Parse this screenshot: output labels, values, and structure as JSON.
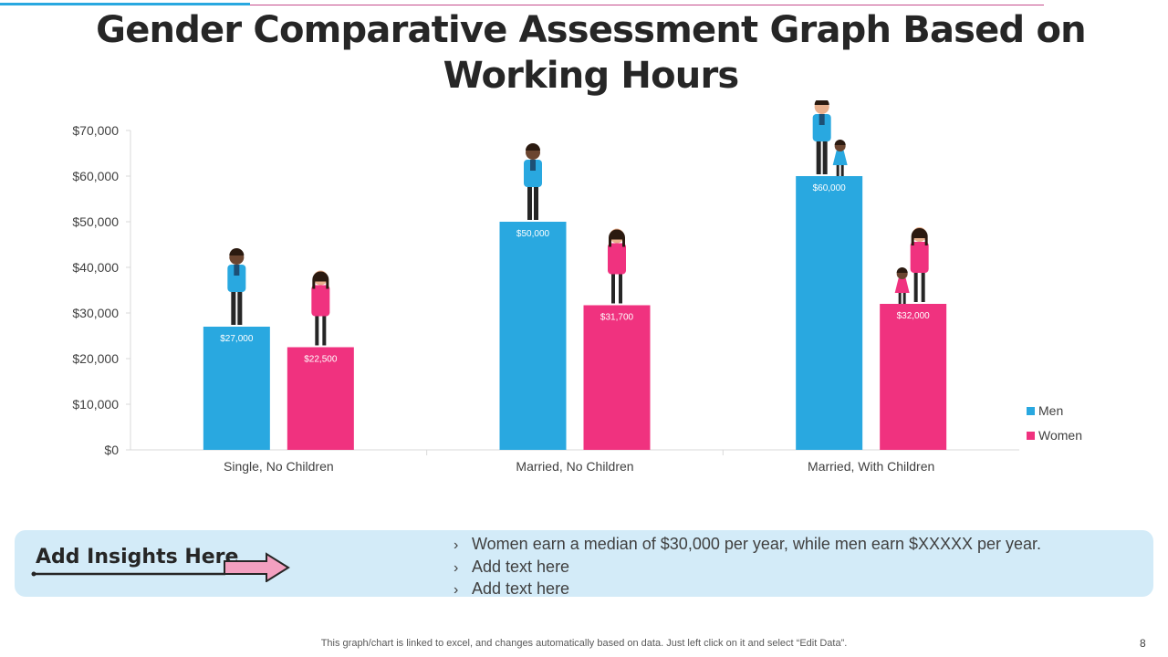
{
  "slide": {
    "title": "Gender Comparative Assessment Graph Based on Working Hours",
    "page_number": "8",
    "footer_note": "This graph/chart is linked to excel, and changes automatically based on data. Just left click on it and select “Edit Data”."
  },
  "colors": {
    "men": "#29a8e0",
    "women": "#f0327f",
    "axis": "#d9d9d9",
    "tick_text": "#404040"
  },
  "chart_data": {
    "type": "bar",
    "title": "",
    "xlabel": "",
    "ylabel": "",
    "categories": [
      "Single, No Children",
      "Married, No Children",
      "Married, With Children"
    ],
    "series": [
      {
        "name": "Men",
        "values": [
          27000,
          50000,
          60000
        ],
        "labels": [
          "$27,000",
          "$50,000",
          "$60,000"
        ]
      },
      {
        "name": "Women",
        "values": [
          22500,
          31700,
          32000
        ],
        "labels": [
          "$22,500",
          "$31,700",
          "$32,000"
        ]
      }
    ],
    "ylim": [
      0,
      70000
    ],
    "yticks": [
      0,
      10000,
      20000,
      30000,
      40000,
      50000,
      60000,
      70000
    ],
    "ytick_labels": [
      "$0",
      "$10,000",
      "$20,000",
      "$30,000",
      "$40,000",
      "$50,000",
      "$60,000",
      "$70,000"
    ],
    "grid": false,
    "legend_position": "right"
  },
  "insights": {
    "heading": "Add Insights Here",
    "bullets": [
      "Women earn a median of $30,000 per year, while men earn $XXXXX per year.",
      "Add text here",
      "Add text here"
    ]
  }
}
